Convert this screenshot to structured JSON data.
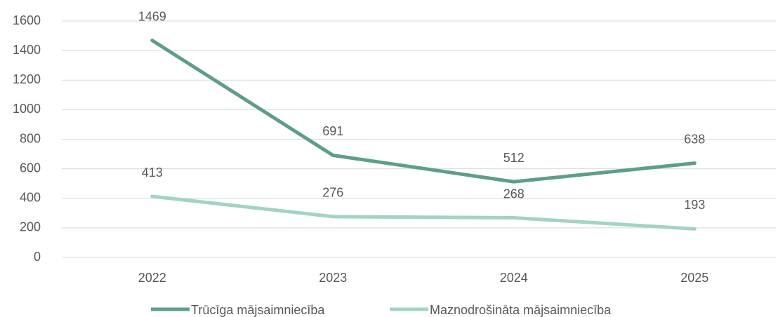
{
  "chart_data": {
    "type": "line",
    "categories": [
      "2022",
      "2023",
      "2024",
      "2025"
    ],
    "series": [
      {
        "name": "Trūcīga mājsaimniecība",
        "color": "#5e9e86",
        "values": [
          1469,
          691,
          512,
          638
        ]
      },
      {
        "name": "Maznodrošināta mājsaimniecība",
        "color": "#a5d3c3",
        "values": [
          413,
          276,
          268,
          193
        ]
      }
    ],
    "ylim": [
      0,
      1600
    ],
    "yticks": [
      0,
      200,
      400,
      600,
      800,
      1000,
      1200,
      1400,
      1600
    ],
    "grid": true,
    "legend": "bottom"
  }
}
